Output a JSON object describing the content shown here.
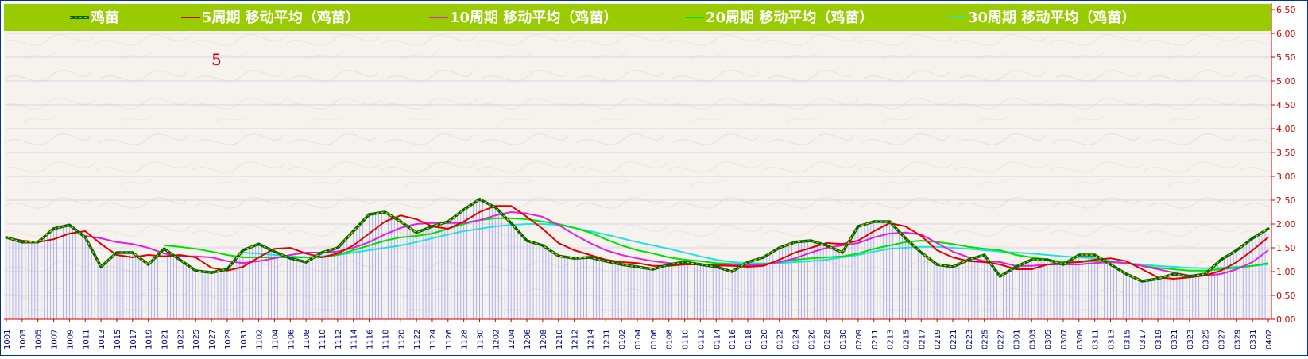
{
  "chart_data": {
    "type": "line",
    "annotation": "5",
    "ylim": [
      0,
      6.5
    ],
    "yticks": [
      "0.00",
      "0.50",
      "1.00",
      "1.50",
      "2.00",
      "2.50",
      "3.00",
      "3.50",
      "4.00",
      "4.50",
      "5.00",
      "5.50",
      "6.00",
      "6.50"
    ],
    "grid": true,
    "legend_position": "top",
    "colors": {
      "price": "#006600",
      "price_dash": "#ffcc00",
      "ma5": "#e00000",
      "ma10": "#e020e0",
      "ma20": "#00e000",
      "ma30": "#20e0e0",
      "legend_bg": "#99cc00",
      "bars": "#b0b0f0",
      "yaxis_text": "#cc0000",
      "xaxis_text": "#000080",
      "annotation": "#cc0000"
    },
    "x": [
      "1001",
      "1003",
      "1005",
      "1007",
      "1009",
      "1011",
      "1013",
      "1015",
      "1017",
      "1019",
      "1021",
      "1023",
      "1025",
      "1027",
      "1029",
      "1031",
      "1102",
      "1104",
      "1106",
      "1108",
      "1110",
      "1112",
      "1114",
      "1116",
      "1118",
      "1120",
      "1122",
      "1124",
      "1126",
      "1128",
      "1130",
      "1202",
      "1204",
      "1206",
      "1208",
      "1210",
      "1212",
      "1214",
      "1231",
      "0102",
      "0104",
      "0106",
      "0108",
      "0110",
      "0112",
      "0114",
      "0116",
      "0118",
      "0120",
      "0122",
      "0124",
      "0126",
      "0128",
      "0130",
      "0209",
      "0211",
      "0213",
      "0215",
      "0217",
      "0219",
      "0221",
      "0223",
      "0225",
      "0227",
      "0301",
      "0303",
      "0305",
      "0307",
      "0309",
      "0311",
      "0313",
      "0315",
      "0317",
      "0319",
      "0321",
      "0323",
      "0325",
      "0327",
      "0329",
      "0331",
      "0402"
    ],
    "series": [
      {
        "name": "鸡苗",
        "values": [
          1.72,
          1.62,
          1.62,
          1.9,
          1.98,
          1.72,
          1.1,
          1.4,
          1.4,
          1.15,
          1.48,
          1.25,
          1.02,
          0.98,
          1.05,
          1.45,
          1.58,
          1.42,
          1.28,
          1.2,
          1.4,
          1.5,
          1.85,
          2.2,
          2.25,
          2.05,
          1.82,
          1.95,
          2.05,
          2.3,
          2.52,
          2.35,
          2.02,
          1.65,
          1.55,
          1.33,
          1.28,
          1.3,
          1.22,
          1.15,
          1.1,
          1.05,
          1.15,
          1.2,
          1.15,
          1.1,
          1.0,
          1.2,
          1.3,
          1.5,
          1.62,
          1.65,
          1.55,
          1.4,
          1.95,
          2.05,
          2.05,
          1.7,
          1.4,
          1.15,
          1.1,
          1.25,
          1.35,
          0.9,
          1.1,
          1.25,
          1.25,
          1.15,
          1.35,
          1.35,
          1.15,
          0.95,
          0.8,
          0.85,
          0.95,
          0.9,
          0.95,
          1.25,
          1.45,
          1.7,
          1.9
        ]
      },
      {
        "name": "5周期 移动平均（鸡苗）",
        "values": [
          1.72,
          1.65,
          1.62,
          1.68,
          1.8,
          1.85,
          1.58,
          1.35,
          1.3,
          1.35,
          1.32,
          1.35,
          1.3,
          1.08,
          1.02,
          1.1,
          1.3,
          1.48,
          1.5,
          1.38,
          1.3,
          1.38,
          1.55,
          1.8,
          2.05,
          2.18,
          2.1,
          1.95,
          1.9,
          2.05,
          2.25,
          2.38,
          2.38,
          2.15,
          1.9,
          1.6,
          1.45,
          1.35,
          1.25,
          1.2,
          1.18,
          1.12,
          1.12,
          1.15,
          1.15,
          1.13,
          1.12,
          1.1,
          1.12,
          1.25,
          1.4,
          1.5,
          1.6,
          1.58,
          1.65,
          1.85,
          2.02,
          1.95,
          1.75,
          1.45,
          1.3,
          1.22,
          1.2,
          1.15,
          1.05,
          1.05,
          1.15,
          1.18,
          1.2,
          1.25,
          1.28,
          1.22,
          1.05,
          0.88,
          0.85,
          0.88,
          0.92,
          1.02,
          1.2,
          1.45,
          1.72
        ]
      },
      {
        "name": "10周期 移动平均（鸡苗）",
        "values": [
          null,
          null,
          null,
          null,
          null,
          1.75,
          1.7,
          1.62,
          1.58,
          1.5,
          1.38,
          1.32,
          1.32,
          1.3,
          1.22,
          1.18,
          1.22,
          1.28,
          1.35,
          1.4,
          1.4,
          1.42,
          1.5,
          1.62,
          1.78,
          1.92,
          2.0,
          2.02,
          2.02,
          2.02,
          2.08,
          2.18,
          2.25,
          2.22,
          2.15,
          1.98,
          1.78,
          1.6,
          1.45,
          1.35,
          1.28,
          1.22,
          1.18,
          1.15,
          1.15,
          1.15,
          1.14,
          1.13,
          1.15,
          1.2,
          1.28,
          1.4,
          1.5,
          1.55,
          1.6,
          1.72,
          1.8,
          1.82,
          1.78,
          1.6,
          1.42,
          1.3,
          1.22,
          1.2,
          1.12,
          1.12,
          1.15,
          1.15,
          1.15,
          1.18,
          1.2,
          1.18,
          1.12,
          1.05,
          0.98,
          0.92,
          0.92,
          0.95,
          1.05,
          1.2,
          1.45
        ]
      },
      {
        "name": "20周期 移动平均（鸡苗）",
        "values": [
          null,
          null,
          null,
          null,
          null,
          null,
          null,
          null,
          null,
          null,
          1.55,
          1.52,
          1.48,
          1.42,
          1.35,
          1.3,
          1.3,
          1.3,
          1.3,
          1.3,
          1.3,
          1.35,
          1.45,
          1.55,
          1.65,
          1.72,
          1.75,
          1.8,
          1.9,
          2.0,
          2.08,
          2.12,
          2.12,
          2.1,
          2.05,
          2.0,
          1.92,
          1.82,
          1.68,
          1.55,
          1.45,
          1.38,
          1.3,
          1.25,
          1.22,
          1.18,
          1.16,
          1.15,
          1.16,
          1.2,
          1.25,
          1.28,
          1.3,
          1.32,
          1.38,
          1.48,
          1.55,
          1.62,
          1.65,
          1.62,
          1.58,
          1.52,
          1.48,
          1.45,
          1.35,
          1.3,
          1.25,
          1.2,
          1.2,
          1.22,
          1.2,
          1.18,
          1.12,
          1.08,
          1.05,
          1.02,
          1.02,
          1.05,
          1.08,
          1.12,
          1.18
        ]
      },
      {
        "name": "30周期 移动平均（鸡苗）",
        "values": [
          null,
          null,
          null,
          null,
          null,
          null,
          null,
          null,
          null,
          null,
          null,
          null,
          null,
          null,
          null,
          1.4,
          1.38,
          1.35,
          1.32,
          1.3,
          1.32,
          1.35,
          1.4,
          1.45,
          1.5,
          1.55,
          1.62,
          1.7,
          1.78,
          1.85,
          1.9,
          1.95,
          1.98,
          2.0,
          2.0,
          1.98,
          1.92,
          1.85,
          1.78,
          1.7,
          1.62,
          1.55,
          1.48,
          1.4,
          1.32,
          1.25,
          1.2,
          1.18,
          1.17,
          1.18,
          1.2,
          1.22,
          1.25,
          1.3,
          1.35,
          1.42,
          1.48,
          1.5,
          1.52,
          1.52,
          1.5,
          1.48,
          1.45,
          1.42,
          1.4,
          1.38,
          1.35,
          1.32,
          1.3,
          1.28,
          1.22,
          1.18,
          1.15,
          1.12,
          1.1,
          1.08,
          1.07,
          1.08,
          1.1,
          1.12,
          1.15
        ]
      }
    ]
  }
}
